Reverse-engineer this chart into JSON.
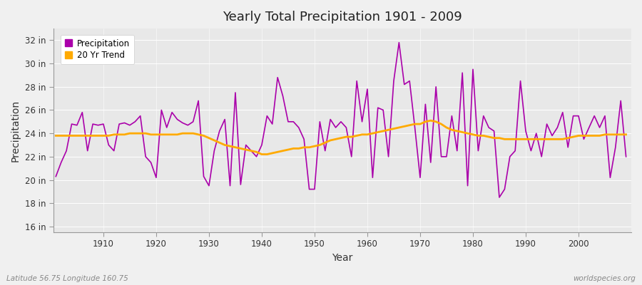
{
  "title": "Yearly Total Precipitation 1901 - 2009",
  "xlabel": "Year",
  "ylabel": "Precipitation",
  "fig_bg_color": "#f0f0f0",
  "plot_bg_color": "#e8e8e8",
  "precip_color": "#aa00aa",
  "trend_color": "#ffaa00",
  "years": [
    1901,
    1902,
    1903,
    1904,
    1905,
    1906,
    1907,
    1908,
    1909,
    1910,
    1911,
    1912,
    1913,
    1914,
    1915,
    1916,
    1917,
    1918,
    1919,
    1920,
    1921,
    1922,
    1923,
    1924,
    1925,
    1926,
    1927,
    1928,
    1929,
    1930,
    1931,
    1932,
    1933,
    1934,
    1935,
    1936,
    1937,
    1938,
    1939,
    1940,
    1941,
    1942,
    1943,
    1944,
    1945,
    1946,
    1947,
    1948,
    1949,
    1950,
    1951,
    1952,
    1953,
    1954,
    1955,
    1956,
    1957,
    1958,
    1959,
    1960,
    1961,
    1962,
    1963,
    1964,
    1965,
    1966,
    1967,
    1968,
    1969,
    1970,
    1971,
    1972,
    1973,
    1974,
    1975,
    1976,
    1977,
    1978,
    1979,
    1980,
    1981,
    1982,
    1983,
    1984,
    1985,
    1986,
    1987,
    1988,
    1989,
    1990,
    1991,
    1992,
    1993,
    1994,
    1995,
    1996,
    1997,
    1998,
    1999,
    2000,
    2001,
    2002,
    2003,
    2004,
    2005,
    2006,
    2007,
    2008,
    2009
  ],
  "precip": [
    20.3,
    21.5,
    22.5,
    24.8,
    24.7,
    25.8,
    22.5,
    24.8,
    24.7,
    24.8,
    23.0,
    22.5,
    24.8,
    24.9,
    24.7,
    25.0,
    25.5,
    22.0,
    21.5,
    20.2,
    26.0,
    24.5,
    25.8,
    25.2,
    24.9,
    24.7,
    25.0,
    26.8,
    20.3,
    19.5,
    22.5,
    24.2,
    25.2,
    19.5,
    27.5,
    19.6,
    23.0,
    22.5,
    22.0,
    23.0,
    25.5,
    24.8,
    28.8,
    27.2,
    25.0,
    25.0,
    24.5,
    23.5,
    19.2,
    19.2,
    25.0,
    22.5,
    25.2,
    24.5,
    25.0,
    24.5,
    22.0,
    28.5,
    25.0,
    27.8,
    20.2,
    26.2,
    26.0,
    22.0,
    28.5,
    31.8,
    28.2,
    28.5,
    24.5,
    20.2,
    26.5,
    21.5,
    28.0,
    22.0,
    22.0,
    25.5,
    22.5,
    29.2,
    19.5,
    29.5,
    22.5,
    25.5,
    24.5,
    24.2,
    18.5,
    19.2,
    22.0,
    22.5,
    28.5,
    24.2,
    22.5,
    24.0,
    22.0,
    24.8,
    23.8,
    24.5,
    25.8,
    22.8,
    25.5,
    25.5,
    23.5,
    24.5,
    25.5,
    24.5,
    25.5,
    20.2,
    22.8,
    26.8,
    22.0
  ],
  "trend_years": [
    1901,
    1902,
    1903,
    1904,
    1905,
    1906,
    1907,
    1908,
    1909,
    1910,
    1911,
    1912,
    1913,
    1914,
    1915,
    1916,
    1917,
    1918,
    1919,
    1920,
    1921,
    1922,
    1923,
    1924,
    1925,
    1926,
    1927,
    1928,
    1929,
    1930,
    1931,
    1932,
    1933,
    1934,
    1935,
    1936,
    1937,
    1938,
    1939,
    1940,
    1941,
    1942,
    1943,
    1944,
    1945,
    1946,
    1947,
    1948,
    1949,
    1950,
    1951,
    1952,
    1953,
    1954,
    1955,
    1956,
    1957,
    1958,
    1959,
    1960,
    1961,
    1962,
    1963,
    1964,
    1965,
    1966,
    1967,
    1968,
    1969,
    1970,
    1971,
    1972,
    1973,
    1974,
    1975,
    1976,
    1977,
    1978,
    1979,
    1980,
    1981,
    1982,
    1983,
    1984,
    1985,
    1986,
    1987,
    1988,
    1989,
    1990,
    1991,
    1992,
    1993,
    1994,
    1995,
    1996,
    1997,
    1998,
    1999,
    2000,
    2001,
    2002,
    2003,
    2004,
    2005,
    2006,
    2007,
    2008,
    2009
  ],
  "trend": [
    23.8,
    23.8,
    23.8,
    23.8,
    23.8,
    23.8,
    23.8,
    23.8,
    23.8,
    23.8,
    23.8,
    23.9,
    23.9,
    23.9,
    24.0,
    24.0,
    24.0,
    24.0,
    23.9,
    23.9,
    23.9,
    23.9,
    23.9,
    23.9,
    24.0,
    24.0,
    24.0,
    23.9,
    23.8,
    23.6,
    23.4,
    23.2,
    23.0,
    22.9,
    22.8,
    22.7,
    22.6,
    22.5,
    22.4,
    22.2,
    22.2,
    22.3,
    22.4,
    22.5,
    22.6,
    22.7,
    22.7,
    22.8,
    22.8,
    22.9,
    23.0,
    23.2,
    23.4,
    23.5,
    23.6,
    23.7,
    23.7,
    23.8,
    23.9,
    23.9,
    24.0,
    24.1,
    24.2,
    24.3,
    24.4,
    24.5,
    24.6,
    24.7,
    24.8,
    24.8,
    25.0,
    25.1,
    25.0,
    24.8,
    24.5,
    24.3,
    24.2,
    24.1,
    24.0,
    23.9,
    23.8,
    23.8,
    23.7,
    23.6,
    23.6,
    23.5,
    23.5,
    23.5,
    23.5,
    23.5,
    23.5,
    23.5,
    23.5,
    23.5,
    23.5,
    23.5,
    23.5,
    23.6,
    23.7,
    23.8,
    23.8,
    23.8,
    23.8,
    23.8,
    23.9,
    23.9,
    23.9,
    23.9,
    23.9
  ],
  "yticks": [
    16,
    18,
    20,
    22,
    24,
    26,
    28,
    30,
    32
  ],
  "ylim": [
    15.5,
    33.0
  ],
  "xlim": [
    1900.5,
    2010
  ]
}
